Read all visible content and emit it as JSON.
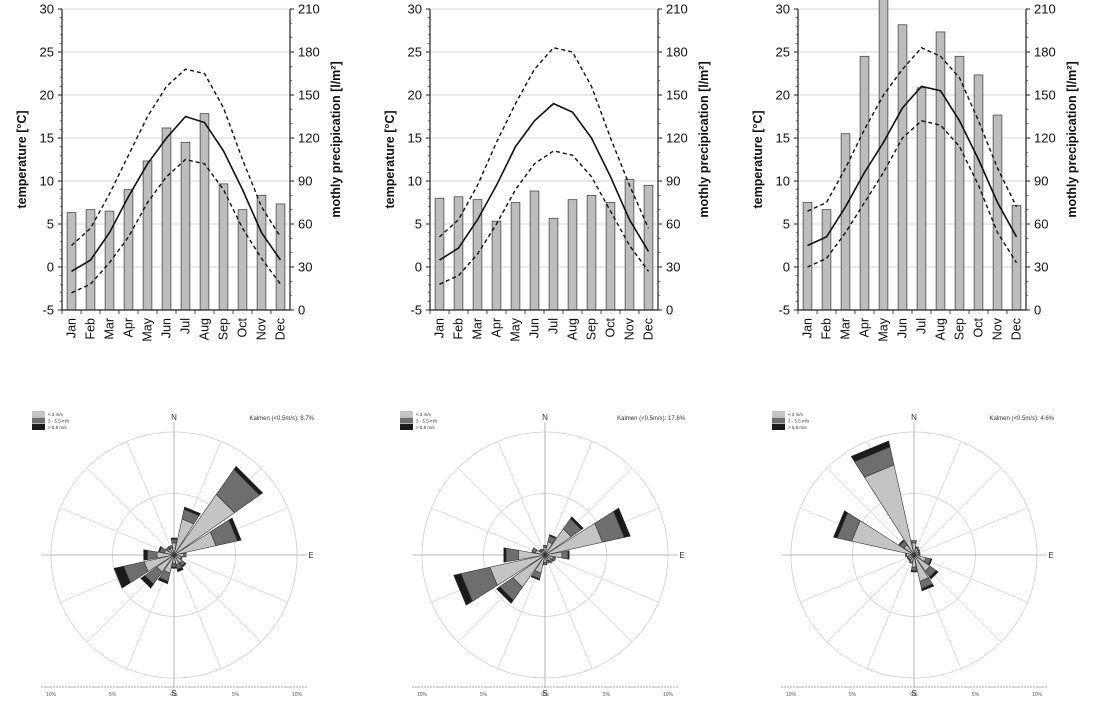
{
  "climate": {
    "left_axis_label": "temperature [°C]",
    "right_axis_label": "mothly precipication [l/m²]",
    "months": [
      "Jan",
      "Feb",
      "Mar",
      "Apr",
      "May",
      "Jun",
      "Jul",
      "Aug",
      "Sep",
      "Oct",
      "Nov",
      "Dec"
    ],
    "temp_ticks": [
      "-5",
      "0",
      "5",
      "10",
      "15",
      "20",
      "25",
      "30"
    ],
    "precip_ticks": [
      "0",
      "30",
      "60",
      "90",
      "120",
      "150",
      "180",
      "210"
    ]
  },
  "wind": {
    "legend": [
      "< 3 m/s",
      "3 - 5.5 m/s",
      "> 5.5 m/s"
    ],
    "compass": {
      "n": "N",
      "e": "E",
      "s": "S"
    },
    "scale_ticks": [
      "10%",
      "5%",
      "0%",
      "5%",
      "10%"
    ],
    "calm": [
      "Kalmen (<0.5m/s): 8.7%",
      "Kalmen (<0.5m/s): 17.6%",
      "Kalmen (<0.5m/s): 4.6%"
    ]
  },
  "chart_data": [
    {
      "type": "bar+line",
      "title": "",
      "categories": [
        "Jan",
        "Feb",
        "Mar",
        "Apr",
        "May",
        "Jun",
        "Jul",
        "Aug",
        "Sep",
        "Oct",
        "Nov",
        "Dec"
      ],
      "ylabel": "temperature [°C]",
      "y2label": "mothly precipication [l/m²]",
      "ylim": [
        -5,
        30
      ],
      "y2lim": [
        0,
        210
      ],
      "grid": true,
      "precipitation": [
        68,
        70,
        69,
        84,
        104,
        127,
        117,
        137,
        88,
        70,
        80,
        74
      ],
      "temp_mean": [
        -0.5,
        0.8,
        4.0,
        8.2,
        12.0,
        15.0,
        17.5,
        16.8,
        13.5,
        9.0,
        4.0,
        0.8
      ],
      "temp_max": [
        2.5,
        4.5,
        8.5,
        13.0,
        17.5,
        21.0,
        23.0,
        22.5,
        18.5,
        12.5,
        7.0,
        3.5
      ],
      "temp_min": [
        -3.0,
        -2.0,
        0.5,
        3.5,
        7.5,
        10.5,
        12.5,
        12.0,
        9.0,
        4.5,
        1.0,
        -2.0
      ]
    },
    {
      "type": "bar+line",
      "title": "",
      "categories": [
        "Jan",
        "Feb",
        "Mar",
        "Apr",
        "May",
        "Jun",
        "Jul",
        "Aug",
        "Sep",
        "Oct",
        "Nov",
        "Dec"
      ],
      "ylabel": "temperature [°C]",
      "y2label": "mothly precipication [l/m²]",
      "ylim": [
        -5,
        30
      ],
      "y2lim": [
        0,
        210
      ],
      "grid": true,
      "precipitation": [
        78,
        79,
        77,
        62,
        75,
        83,
        64,
        77,
        80,
        75,
        91,
        87
      ],
      "temp_mean": [
        0.8,
        2.2,
        5.5,
        9.5,
        14.0,
        17.0,
        19.0,
        18.0,
        15.0,
        10.5,
        5.5,
        1.8
      ],
      "temp_max": [
        3.5,
        5.5,
        9.5,
        14.5,
        19.0,
        23.0,
        25.5,
        25.0,
        21.0,
        15.0,
        9.5,
        4.5
      ],
      "temp_min": [
        -2.0,
        -1.0,
        1.5,
        5.0,
        9.0,
        12.0,
        13.5,
        13.0,
        10.5,
        6.5,
        2.5,
        -0.5
      ]
    },
    {
      "type": "bar+line",
      "title": "",
      "categories": [
        "Jan",
        "Feb",
        "Mar",
        "Apr",
        "May",
        "Jun",
        "Jul",
        "Aug",
        "Sep",
        "Oct",
        "Nov",
        "Dec"
      ],
      "ylabel": "temperature [°C]",
      "y2label": "mothly precipication [l/m²]",
      "ylim": [
        -5,
        30
      ],
      "y2lim": [
        0,
        210
      ],
      "grid": true,
      "precipitation": [
        75,
        70,
        123,
        177,
        226,
        199,
        155,
        194,
        177,
        164,
        136,
        73
      ],
      "temp_mean": [
        2.5,
        3.5,
        7.0,
        11.0,
        14.5,
        18.5,
        21.0,
        20.5,
        17.0,
        12.5,
        7.5,
        3.5
      ],
      "temp_max": [
        6.5,
        7.5,
        11.5,
        16.0,
        20.0,
        23.0,
        25.5,
        24.5,
        22.0,
        17.0,
        11.5,
        7.0
      ],
      "temp_min": [
        0.0,
        1.0,
        4.0,
        7.5,
        11.0,
        15.0,
        17.0,
        16.5,
        14.0,
        9.5,
        4.0,
        0.5
      ]
    },
    {
      "type": "windrose",
      "title": "",
      "directions_deg": [
        0,
        22.5,
        45,
        67.5,
        90,
        112.5,
        135,
        157.5,
        180,
        202.5,
        225,
        247.5,
        270,
        292.5,
        315,
        337.5
      ],
      "scale_percent": 10,
      "speed_classes": [
        "< 3 m/s",
        "3 - 5.5 m/s",
        "> 5.5 m/s"
      ],
      "series": [
        {
          "name": "< 3 m/s",
          "values": [
            1.0,
            3.0,
            6.0,
            3.5,
            0.8,
            0.6,
            0.8,
            0.8,
            0.7,
            1.5,
            1.7,
            2.5,
            1.4,
            0.8,
            0.6,
            0.6
          ]
        },
        {
          "name": "3 - 5.5 m/s",
          "values": [
            0.3,
            0.8,
            2.5,
            1.8,
            0.2,
            0.1,
            0.3,
            0.4,
            0.3,
            0.7,
            1.2,
            1.7,
            0.8,
            0.4,
            0.2,
            0.2
          ]
        },
        {
          "name": "> 5.5 m/s",
          "values": [
            0.1,
            0.2,
            0.3,
            0.3,
            0.0,
            0.0,
            0.1,
            0.2,
            0.1,
            0.2,
            0.4,
            0.8,
            0.3,
            0.1,
            0.0,
            0.0
          ]
        }
      ]
    },
    {
      "type": "windrose",
      "title": "",
      "directions_deg": [
        0,
        22.5,
        45,
        67.5,
        90,
        112.5,
        135,
        157.5,
        180,
        202.5,
        225,
        247.5,
        270,
        292.5,
        315,
        337.5
      ],
      "scale_percent": 10,
      "speed_classes": [
        "< 3 m/s",
        "3 - 5.5 m/s",
        "> 5.5 m/s"
      ],
      "series": [
        {
          "name": "< 3 m/s",
          "values": [
            0.6,
            1.1,
            2.6,
            4.8,
            1.4,
            0.7,
            0.6,
            0.5,
            0.6,
            1.5,
            3.2,
            4.6,
            2.2,
            0.8,
            0.4,
            0.4
          ]
        },
        {
          "name": "3 - 5.5 m/s",
          "values": [
            0.2,
            0.5,
            1.0,
            1.8,
            0.5,
            0.2,
            0.2,
            0.2,
            0.2,
            0.5,
            1.3,
            2.4,
            1.0,
            0.3,
            0.2,
            0.1
          ]
        },
        {
          "name": "> 5.5 m/s",
          "values": [
            0.0,
            0.1,
            0.2,
            0.5,
            0.1,
            0.0,
            0.0,
            0.0,
            0.0,
            0.1,
            0.3,
            0.6,
            0.2,
            0.0,
            0.0,
            0.0
          ]
        }
      ]
    },
    {
      "type": "windrose",
      "title": "",
      "directions_deg": [
        0,
        22.5,
        45,
        67.5,
        90,
        112.5,
        135,
        157.5,
        180,
        202.5,
        225,
        247.5,
        270,
        292.5,
        315,
        337.5
      ],
      "scale_percent": 10,
      "speed_classes": [
        "< 3 m/s",
        "3 - 5.5 m/s",
        "> 5.5 m/s"
      ],
      "series": [
        {
          "name": "< 3 m/s",
          "values": [
            1.0,
            0.6,
            0.5,
            0.4,
            0.4,
            1.0,
            1.6,
            2.2,
            1.0,
            0.6,
            0.5,
            0.5,
            0.6,
            5.2,
            1.0,
            7.5
          ]
        },
        {
          "name": "3 - 5.5 m/s",
          "values": [
            0.2,
            0.1,
            0.1,
            0.1,
            0.1,
            0.4,
            0.6,
            0.6,
            0.3,
            0.1,
            0.1,
            0.1,
            0.1,
            1.2,
            0.4,
            1.5
          ]
        },
        {
          "name": "> 5.5 m/s",
          "values": [
            0.0,
            0.0,
            0.0,
            0.0,
            0.0,
            0.1,
            0.2,
            0.2,
            0.1,
            0.0,
            0.0,
            0.0,
            0.0,
            0.3,
            0.1,
            0.5
          ]
        }
      ]
    }
  ]
}
